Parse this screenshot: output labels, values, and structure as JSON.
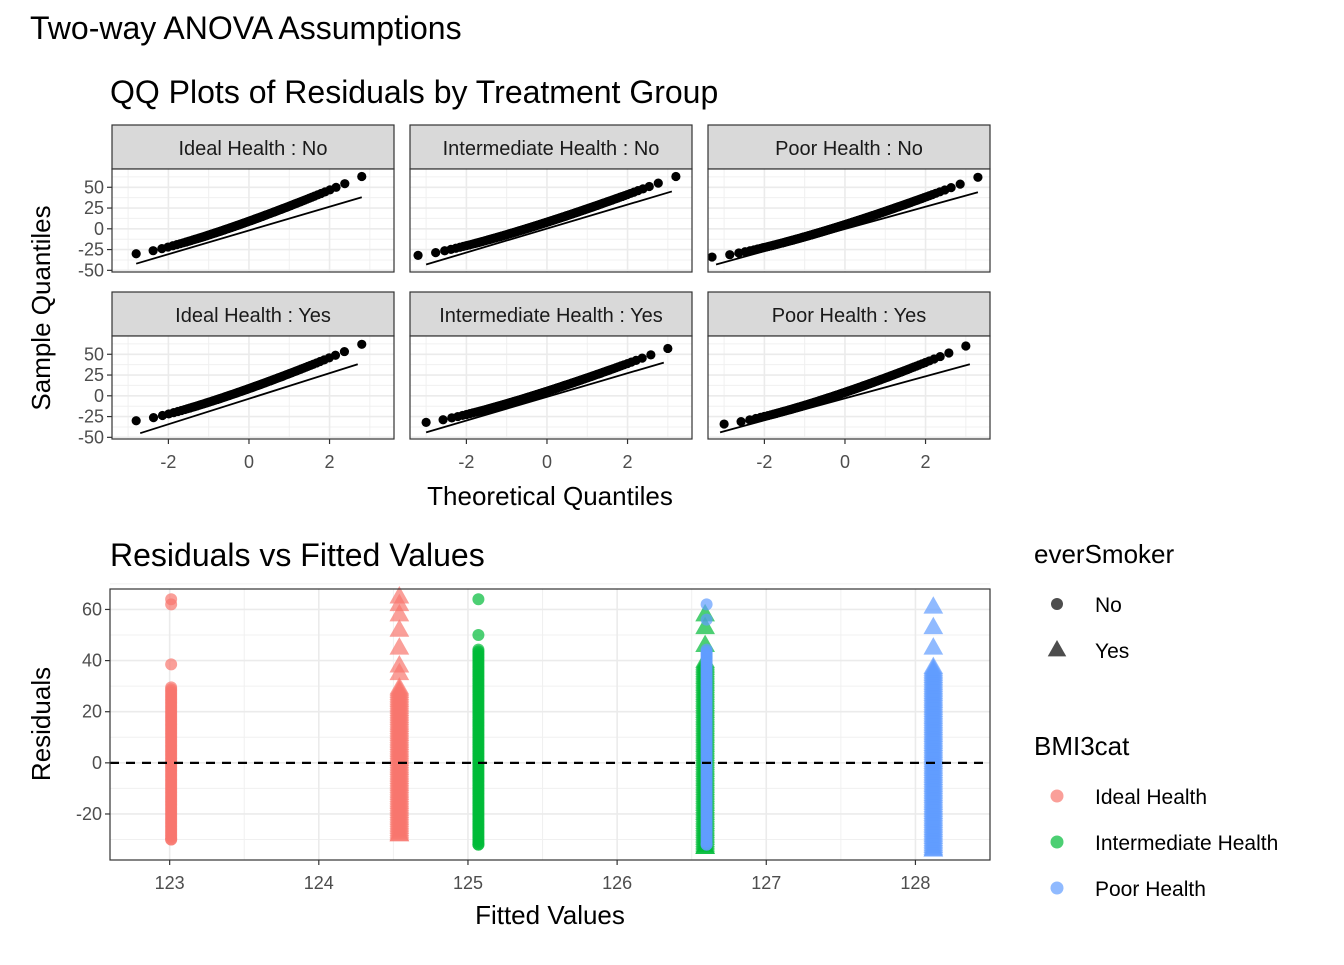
{
  "page_title": "Two-way ANOVA Assumptions",
  "chart_data": [
    {
      "type": "scatter",
      "subtype": "qq-facet",
      "title": "QQ Plots of Residuals by Treatment Group",
      "xlabel": "Theoretical Quantiles",
      "ylabel": "Sample Quantiles",
      "xlim": [
        -3.4,
        3.6
      ],
      "ylim": [
        -52,
        72
      ],
      "x_ticks": [
        "-2",
        "0",
        "2"
      ],
      "x_tick_values": [
        -2,
        0,
        2
      ],
      "y_ticks": [
        "50",
        "25",
        "0",
        "-25",
        "-50"
      ],
      "y_tick_values": [
        50,
        25,
        0,
        -25,
        -50
      ],
      "grid": true,
      "point_color": "#000000",
      "line_color": "#000000",
      "panels": [
        {
          "label": "Ideal Health : No",
          "n": 120,
          "qq": {
            "tmin": -2.8,
            "tmax": 2.8,
            "ymin": -30,
            "ymax": 63,
            "slope": 13.5,
            "intercept": 0,
            "ypow": 1.25
          },
          "line": {
            "x": [
              -2.8,
              2.8
            ],
            "y": [
              -42,
              38
            ]
          }
        },
        {
          "label": "Intermediate Health : No",
          "n": 180,
          "qq": {
            "tmin": -3.2,
            "tmax": 3.2,
            "ymin": -32,
            "ymax": 63,
            "slope": 13.5,
            "intercept": 0,
            "ypow": 1.25
          },
          "line": {
            "x": [
              -3.0,
              3.1
            ],
            "y": [
              -43,
              45
            ]
          }
        },
        {
          "label": "Poor Health : No",
          "n": 200,
          "qq": {
            "tmin": -3.3,
            "tmax": 3.3,
            "ymin": -34,
            "ymax": 62,
            "slope": 13.5,
            "intercept": 0,
            "ypow": 1.3
          },
          "line": {
            "x": [
              -3.2,
              3.3
            ],
            "y": [
              -43,
              44
            ]
          }
        },
        {
          "label": "Ideal Health : Yes",
          "n": 110,
          "qq": {
            "tmin": -2.8,
            "tmax": 2.8,
            "ymin": -30,
            "ymax": 62,
            "slope": 13.5,
            "intercept": 0,
            "ypow": 1.25
          },
          "line": {
            "x": [
              -2.7,
              2.7
            ],
            "y": [
              -45,
              38
            ]
          }
        },
        {
          "label": "Intermediate Health : Yes",
          "n": 160,
          "qq": {
            "tmin": -3.0,
            "tmax": 3.0,
            "ymin": -32,
            "ymax": 57,
            "slope": 13.5,
            "intercept": 0,
            "ypow": 1.25
          },
          "line": {
            "x": [
              -3.0,
              2.9
            ],
            "y": [
              -44,
              40
            ]
          }
        },
        {
          "label": "Poor Health : Yes",
          "n": 160,
          "qq": {
            "tmin": -3.0,
            "tmax": 3.0,
            "ymin": -34,
            "ymax": 60,
            "slope": 13.5,
            "intercept": 0,
            "ypow": 1.3
          },
          "line": {
            "x": [
              -3.1,
              3.1
            ],
            "y": [
              -44,
              38
            ]
          }
        }
      ]
    },
    {
      "type": "scatter",
      "title": "Residuals vs Fitted Values",
      "xlabel": "Fitted Values",
      "ylabel": "Residuals",
      "xlim": [
        122.6,
        128.5
      ],
      "ylim": [
        -38,
        68
      ],
      "x_ticks": [
        "123",
        "124",
        "125",
        "126",
        "127",
        "128"
      ],
      "x_tick_values": [
        123,
        124,
        125,
        126,
        127,
        128
      ],
      "y_ticks": [
        "60",
        "40",
        "20",
        "0",
        "-20"
      ],
      "y_tick_values": [
        60,
        40,
        20,
        0,
        -20
      ],
      "grid": true,
      "reference_line": {
        "y": 0,
        "style": "dashed",
        "color": "#000000"
      },
      "groups": [
        {
          "BMI3cat": "Ideal Health",
          "everSmoker": "No",
          "fitted": 123.01,
          "color": "#F8766D",
          "residual_range": [
            -30,
            64
          ],
          "dense_range": [
            -30,
            30
          ],
          "outliers": [
            38.5,
            62,
            64
          ]
        },
        {
          "BMI3cat": "Ideal Health",
          "everSmoker": "Yes",
          "fitted": 124.54,
          "color": "#F8766D",
          "residual_range": [
            -28,
            65
          ],
          "dense_range": [
            -28,
            30
          ],
          "outliers": [
            35,
            38,
            45,
            52,
            58,
            62,
            65
          ]
        },
        {
          "BMI3cat": "Intermediate Health",
          "everSmoker": "No",
          "fitted": 125.07,
          "color": "#00BA38",
          "residual_range": [
            -32,
            64
          ],
          "dense_range": [
            -32,
            45
          ],
          "outliers": [
            50,
            64
          ]
        },
        {
          "BMI3cat": "Intermediate Health",
          "everSmoker": "Yes",
          "fitted": 126.59,
          "color": "#00BA38",
          "residual_range": [
            -33,
            58
          ],
          "dense_range": [
            -33,
            40
          ],
          "outliers": [
            46,
            53,
            58
          ]
        },
        {
          "BMI3cat": "Poor Health",
          "everSmoker": "No",
          "fitted": 126.6,
          "color": "#619CFF",
          "residual_range": [
            -32,
            62
          ],
          "dense_range": [
            -32,
            45
          ],
          "outliers": [
            56,
            62
          ]
        },
        {
          "BMI3cat": "Poor Health",
          "everSmoker": "Yes",
          "fitted": 128.12,
          "color": "#619CFF",
          "residual_range": [
            -34,
            61
          ],
          "dense_range": [
            -34,
            38
          ],
          "outliers": [
            45,
            53,
            61
          ]
        }
      ],
      "legends": [
        {
          "title": "everSmoker",
          "type": "shape",
          "entries": [
            {
              "label": "No",
              "shape": "circle"
            },
            {
              "label": "Yes",
              "shape": "triangle"
            }
          ]
        },
        {
          "title": "BMI3cat",
          "type": "color",
          "entries": [
            {
              "label": "Ideal Health",
              "color": "#F8766D"
            },
            {
              "label": "Intermediate Health",
              "color": "#00BA38"
            },
            {
              "label": "Poor Health",
              "color": "#619CFF"
            }
          ]
        }
      ]
    }
  ]
}
